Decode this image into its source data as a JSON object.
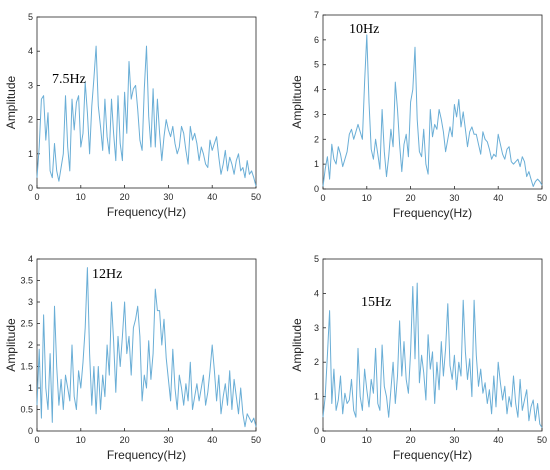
{
  "chart_data": [
    {
      "type": "line",
      "xlabel": "Frequency(Hz)",
      "ylabel": "Amplitude",
      "xlim": [
        0,
        50
      ],
      "ylim": [
        0,
        5
      ],
      "xticks": [
        "0",
        "10",
        "20",
        "30",
        "40",
        "50"
      ],
      "yticks": [
        "0",
        "1",
        "2",
        "3",
        "4",
        "5"
      ],
      "annotation": "7.5Hz",
      "color": "#6aaed6",
      "grid": false,
      "series": [
        {
          "x": [
            0,
            0.5,
            1,
            1.5,
            2,
            2.5,
            3,
            3.5,
            4,
            4.5,
            5,
            5.5,
            6,
            6.5,
            7,
            7.5,
            8,
            8.5,
            9,
            9.5,
            10,
            10.5,
            11,
            11.5,
            12,
            12.5,
            13,
            13.5,
            14,
            14.5,
            15,
            15.5,
            16,
            16.5,
            17,
            17.5,
            18,
            18.5,
            19,
            19.5,
            20,
            20.5,
            21,
            21.5,
            22,
            22.5,
            23,
            23.5,
            24,
            24.5,
            25,
            25.5,
            26,
            26.5,
            27,
            27.5,
            28,
            28.5,
            29,
            29.5,
            30,
            30.5,
            31,
            31.5,
            32,
            32.5,
            33,
            33.5,
            34,
            34.5,
            35,
            35.5,
            36,
            36.5,
            37,
            37.5,
            38,
            38.5,
            39,
            39.5,
            40,
            40.5,
            41,
            41.5,
            42,
            42.5,
            43,
            43.5,
            44,
            44.5,
            45,
            45.5,
            46,
            46.5,
            47,
            47.5,
            48,
            48.5,
            49,
            49.5,
            50
          ],
          "values": [
            0.3,
            1.2,
            2.6,
            2.7,
            1.4,
            2.2,
            0.5,
            0.3,
            1.3,
            0.5,
            0.2,
            0.6,
            1.0,
            2.7,
            1.2,
            0.5,
            2.6,
            1.7,
            2.5,
            2.7,
            1.2,
            1.6,
            3.1,
            2.2,
            1.0,
            2.4,
            3.2,
            4.15,
            2.4,
            1.8,
            1.1,
            2.6,
            1.5,
            1.0,
            2.6,
            1.6,
            0.8,
            2.7,
            1.3,
            0.8,
            2.8,
            1.6,
            3.7,
            2.6,
            2.9,
            3.0,
            2.3,
            1.4,
            1.1,
            2.9,
            4.15,
            2.1,
            1.2,
            2.9,
            1.2,
            2.6,
            1.6,
            0.8,
            1.5,
            2.0,
            1.7,
            1.5,
            1.8,
            1.3,
            1.0,
            1.2,
            1.8,
            1.6,
            1.1,
            0.7,
            1.8,
            1.4,
            1.6,
            1.3,
            0.8,
            1.2,
            1.0,
            0.7,
            0.6,
            1.4,
            1.1,
            1.3,
            1.5,
            0.9,
            0.4,
            0.7,
            1.1,
            0.5,
            0.9,
            0.7,
            0.4,
            0.8,
            1.0,
            0.5,
            0.6,
            0.3,
            0.8,
            0.4,
            0.5,
            0.3,
            0.05
          ]
        }
      ]
    },
    {
      "type": "line",
      "xlabel": "Frequency(Hz)",
      "ylabel": "Amplitude",
      "xlim": [
        0,
        50
      ],
      "ylim": [
        0,
        7
      ],
      "xticks": [
        "0",
        "10",
        "20",
        "30",
        "40",
        "50"
      ],
      "yticks": [
        "0",
        "1",
        "2",
        "3",
        "4",
        "5",
        "6",
        "7"
      ],
      "annotation": "10Hz",
      "color": "#6aaed6",
      "grid": false,
      "series": [
        {
          "x": [
            0,
            0.5,
            1,
            1.5,
            2,
            2.5,
            3,
            3.5,
            4,
            4.5,
            5,
            5.5,
            6,
            6.5,
            7,
            7.5,
            8,
            8.5,
            9,
            9.5,
            10,
            10.5,
            11,
            11.5,
            12,
            12.5,
            13,
            13.5,
            14,
            14.5,
            15,
            15.5,
            16,
            16.5,
            17,
            17.5,
            18,
            18.5,
            19,
            19.5,
            20,
            20.5,
            21,
            21.5,
            22,
            22.5,
            23,
            23.5,
            24,
            24.5,
            25,
            25.5,
            26,
            26.5,
            27,
            27.5,
            28,
            28.5,
            29,
            29.5,
            30,
            30.5,
            31,
            31.5,
            32,
            32.5,
            33,
            33.5,
            34,
            34.5,
            35,
            35.5,
            36,
            36.5,
            37,
            37.5,
            38,
            38.5,
            39,
            39.5,
            40,
            40.5,
            41,
            41.5,
            42,
            42.5,
            43,
            43.5,
            44,
            44.5,
            45,
            45.5,
            46,
            46.5,
            47,
            47.5,
            48,
            48.5,
            49,
            49.5,
            50
          ],
          "values": [
            0.1,
            0.8,
            1.3,
            0.4,
            1.8,
            1.2,
            1.0,
            1.7,
            1.4,
            0.9,
            1.2,
            1.5,
            2.2,
            2.4,
            2.0,
            2.3,
            2.6,
            2.3,
            2.0,
            4.3,
            6.2,
            3.5,
            1.6,
            1.2,
            2.0,
            1.4,
            0.8,
            3.2,
            1.5,
            0.5,
            1.3,
            2.4,
            1.7,
            4.3,
            3.2,
            1.8,
            0.7,
            1.8,
            2.2,
            1.3,
            3.5,
            4.0,
            5.7,
            2.8,
            1.5,
            1.3,
            2.4,
            1.0,
            0.6,
            3.2,
            2.1,
            2.6,
            2.4,
            3.2,
            2.8,
            2.3,
            1.5,
            2.0,
            2.5,
            2.1,
            3.4,
            2.9,
            3.6,
            2.5,
            3.1,
            2.4,
            1.7,
            2.3,
            2.5,
            2.2,
            2.2,
            1.8,
            1.4,
            2.3,
            2.0,
            1.9,
            1.6,
            1.2,
            1.4,
            1.3,
            2.2,
            1.8,
            1.4,
            1.2,
            1.6,
            1.7,
            1.1,
            1.0,
            1.1,
            1.2,
            0.9,
            1.3,
            1.1,
            0.5,
            0.7,
            0.4,
            0.1,
            0.3,
            0.4,
            0.3,
            0.15
          ]
        }
      ]
    },
    {
      "type": "line",
      "xlabel": "Frequency(Hz)",
      "ylabel": "Amplitude",
      "xlim": [
        0,
        50
      ],
      "ylim": [
        0,
        4
      ],
      "xticks": [
        "0",
        "10",
        "20",
        "30",
        "40",
        "50"
      ],
      "yticks": [
        "0",
        "0.5",
        "1",
        "1.5",
        "2",
        "2.5",
        "3",
        "3.5",
        "4"
      ],
      "annotation": "12Hz",
      "color": "#6aaed6",
      "grid": false,
      "series": [
        {
          "x": [
            0,
            0.5,
            1,
            1.5,
            2,
            2.5,
            3,
            3.5,
            4,
            4.5,
            5,
            5.5,
            6,
            6.5,
            7,
            7.5,
            8,
            8.5,
            9,
            9.5,
            10,
            10.5,
            11,
            11.5,
            12,
            12.5,
            13,
            13.5,
            14,
            14.5,
            15,
            15.5,
            16,
            16.5,
            17,
            17.5,
            18,
            18.5,
            19,
            19.5,
            20,
            20.5,
            21,
            21.5,
            22,
            22.5,
            23,
            23.5,
            24,
            24.5,
            25,
            25.5,
            26,
            26.5,
            27,
            27.5,
            28,
            28.5,
            29,
            29.5,
            30,
            30.5,
            31,
            31.5,
            32,
            32.5,
            33,
            33.5,
            34,
            34.5,
            35,
            35.5,
            36,
            36.5,
            37,
            37.5,
            38,
            38.5,
            39,
            39.5,
            40,
            40.5,
            41,
            41.5,
            42,
            42.5,
            43,
            43.5,
            44,
            44.5,
            45,
            45.5,
            46,
            46.5,
            47,
            47.5,
            48,
            48.5,
            49,
            49.5,
            50
          ],
          "values": [
            0.6,
            1.9,
            0.3,
            2.7,
            1.0,
            0.5,
            1.8,
            0.2,
            2.9,
            1.5,
            0.6,
            1.2,
            0.5,
            1.3,
            1.0,
            0.7,
            2.0,
            0.8,
            0.5,
            1.4,
            1.0,
            1.6,
            2.4,
            3.8,
            1.8,
            0.6,
            1.5,
            0.4,
            1.5,
            0.5,
            1.3,
            0.8,
            2.0,
            1.3,
            3.0,
            2.1,
            0.9,
            2.2,
            1.5,
            2.2,
            3.0,
            1.8,
            2.2,
            1.3,
            2.4,
            2.6,
            2.9,
            2.2,
            0.7,
            1.3,
            1.0,
            2.1,
            1.2,
            1.8,
            3.3,
            2.8,
            2.8,
            2.0,
            2.6,
            1.7,
            1.2,
            0.7,
            1.9,
            1.0,
            0.5,
            1.3,
            1.0,
            0.6,
            1.1,
            0.7,
            1.6,
            0.5,
            0.8,
            1.1,
            0.7,
            1.0,
            1.3,
            0.6,
            0.9,
            1.4,
            2.0,
            1.4,
            0.7,
            1.3,
            0.4,
            0.8,
            1.1,
            0.6,
            1.4,
            0.5,
            1.2,
            0.8,
            0.4,
            1.0,
            0.4,
            0.1,
            0.4,
            0.3,
            0.2,
            0.3,
            0.1
          ]
        }
      ]
    },
    {
      "type": "line",
      "xlabel": "Frequency(Hz)",
      "ylabel": "Amplitude",
      "xlim": [
        0,
        50
      ],
      "ylim": [
        0,
        5
      ],
      "xticks": [
        "0",
        "10",
        "20",
        "30",
        "40",
        "50"
      ],
      "yticks": [
        "0",
        "1",
        "2",
        "3",
        "4",
        "5"
      ],
      "annotation": "15Hz",
      "color": "#6aaed6",
      "grid": false,
      "series": [
        {
          "x": [
            0,
            0.5,
            1,
            1.5,
            2,
            2.5,
            3,
            3.5,
            4,
            4.5,
            5,
            5.5,
            6,
            6.5,
            7,
            7.5,
            8,
            8.5,
            9,
            9.5,
            10,
            10.5,
            11,
            11.5,
            12,
            12.5,
            13,
            13.5,
            14,
            14.5,
            15,
            15.5,
            16,
            16.5,
            17,
            17.5,
            18,
            18.5,
            19,
            19.5,
            20,
            20.5,
            21,
            21.5,
            22,
            22.5,
            23,
            23.5,
            24,
            24.5,
            25,
            25.5,
            26,
            26.5,
            27,
            27.5,
            28,
            28.5,
            29,
            29.5,
            30,
            30.5,
            31,
            31.5,
            32,
            32.5,
            33,
            33.5,
            34,
            34.5,
            35,
            35.5,
            36,
            36.5,
            37,
            37.5,
            38,
            38.5,
            39,
            39.5,
            40,
            40.5,
            41,
            41.5,
            42,
            42.5,
            43,
            43.5,
            44,
            44.5,
            45,
            45.5,
            46,
            46.5,
            47,
            47.5,
            48,
            48.5,
            49,
            49.5,
            50
          ],
          "values": [
            0.4,
            1.0,
            2.2,
            3.5,
            0.8,
            1.8,
            0.6,
            0.9,
            1.6,
            0.5,
            1.1,
            0.8,
            0.9,
            1.5,
            0.6,
            0.4,
            2.4,
            1.0,
            0.6,
            1.8,
            1.2,
            0.7,
            1.5,
            1.1,
            2.4,
            0.8,
            0.6,
            2.5,
            1.3,
            1.0,
            0.4,
            1.2,
            2.0,
            0.8,
            1.6,
            3.2,
            1.6,
            2.6,
            1.5,
            1.1,
            2.3,
            4.2,
            2.1,
            4.3,
            1.4,
            2.2,
            1.7,
            0.9,
            2.8,
            1.8,
            2.3,
            0.8,
            2.0,
            1.2,
            2.6,
            1.6,
            2.4,
            3.7,
            1.9,
            1.5,
            2.2,
            1.2,
            2.0,
            1.6,
            3.8,
            2.3,
            1.5,
            2.1,
            1.0,
            3.8,
            2.2,
            1.3,
            1.8,
            1.1,
            1.4,
            0.8,
            1.2,
            0.5,
            1.6,
            0.7,
            2.0,
            1.4,
            0.9,
            1.3,
            0.5,
            1.0,
            0.7,
            1.6,
            0.8,
            0.4,
            1.5,
            0.6,
            0.9,
            1.2,
            0.3,
            0.7,
            0.9,
            0.3,
            0.8,
            0.2,
            0.1
          ]
        }
      ]
    }
  ]
}
